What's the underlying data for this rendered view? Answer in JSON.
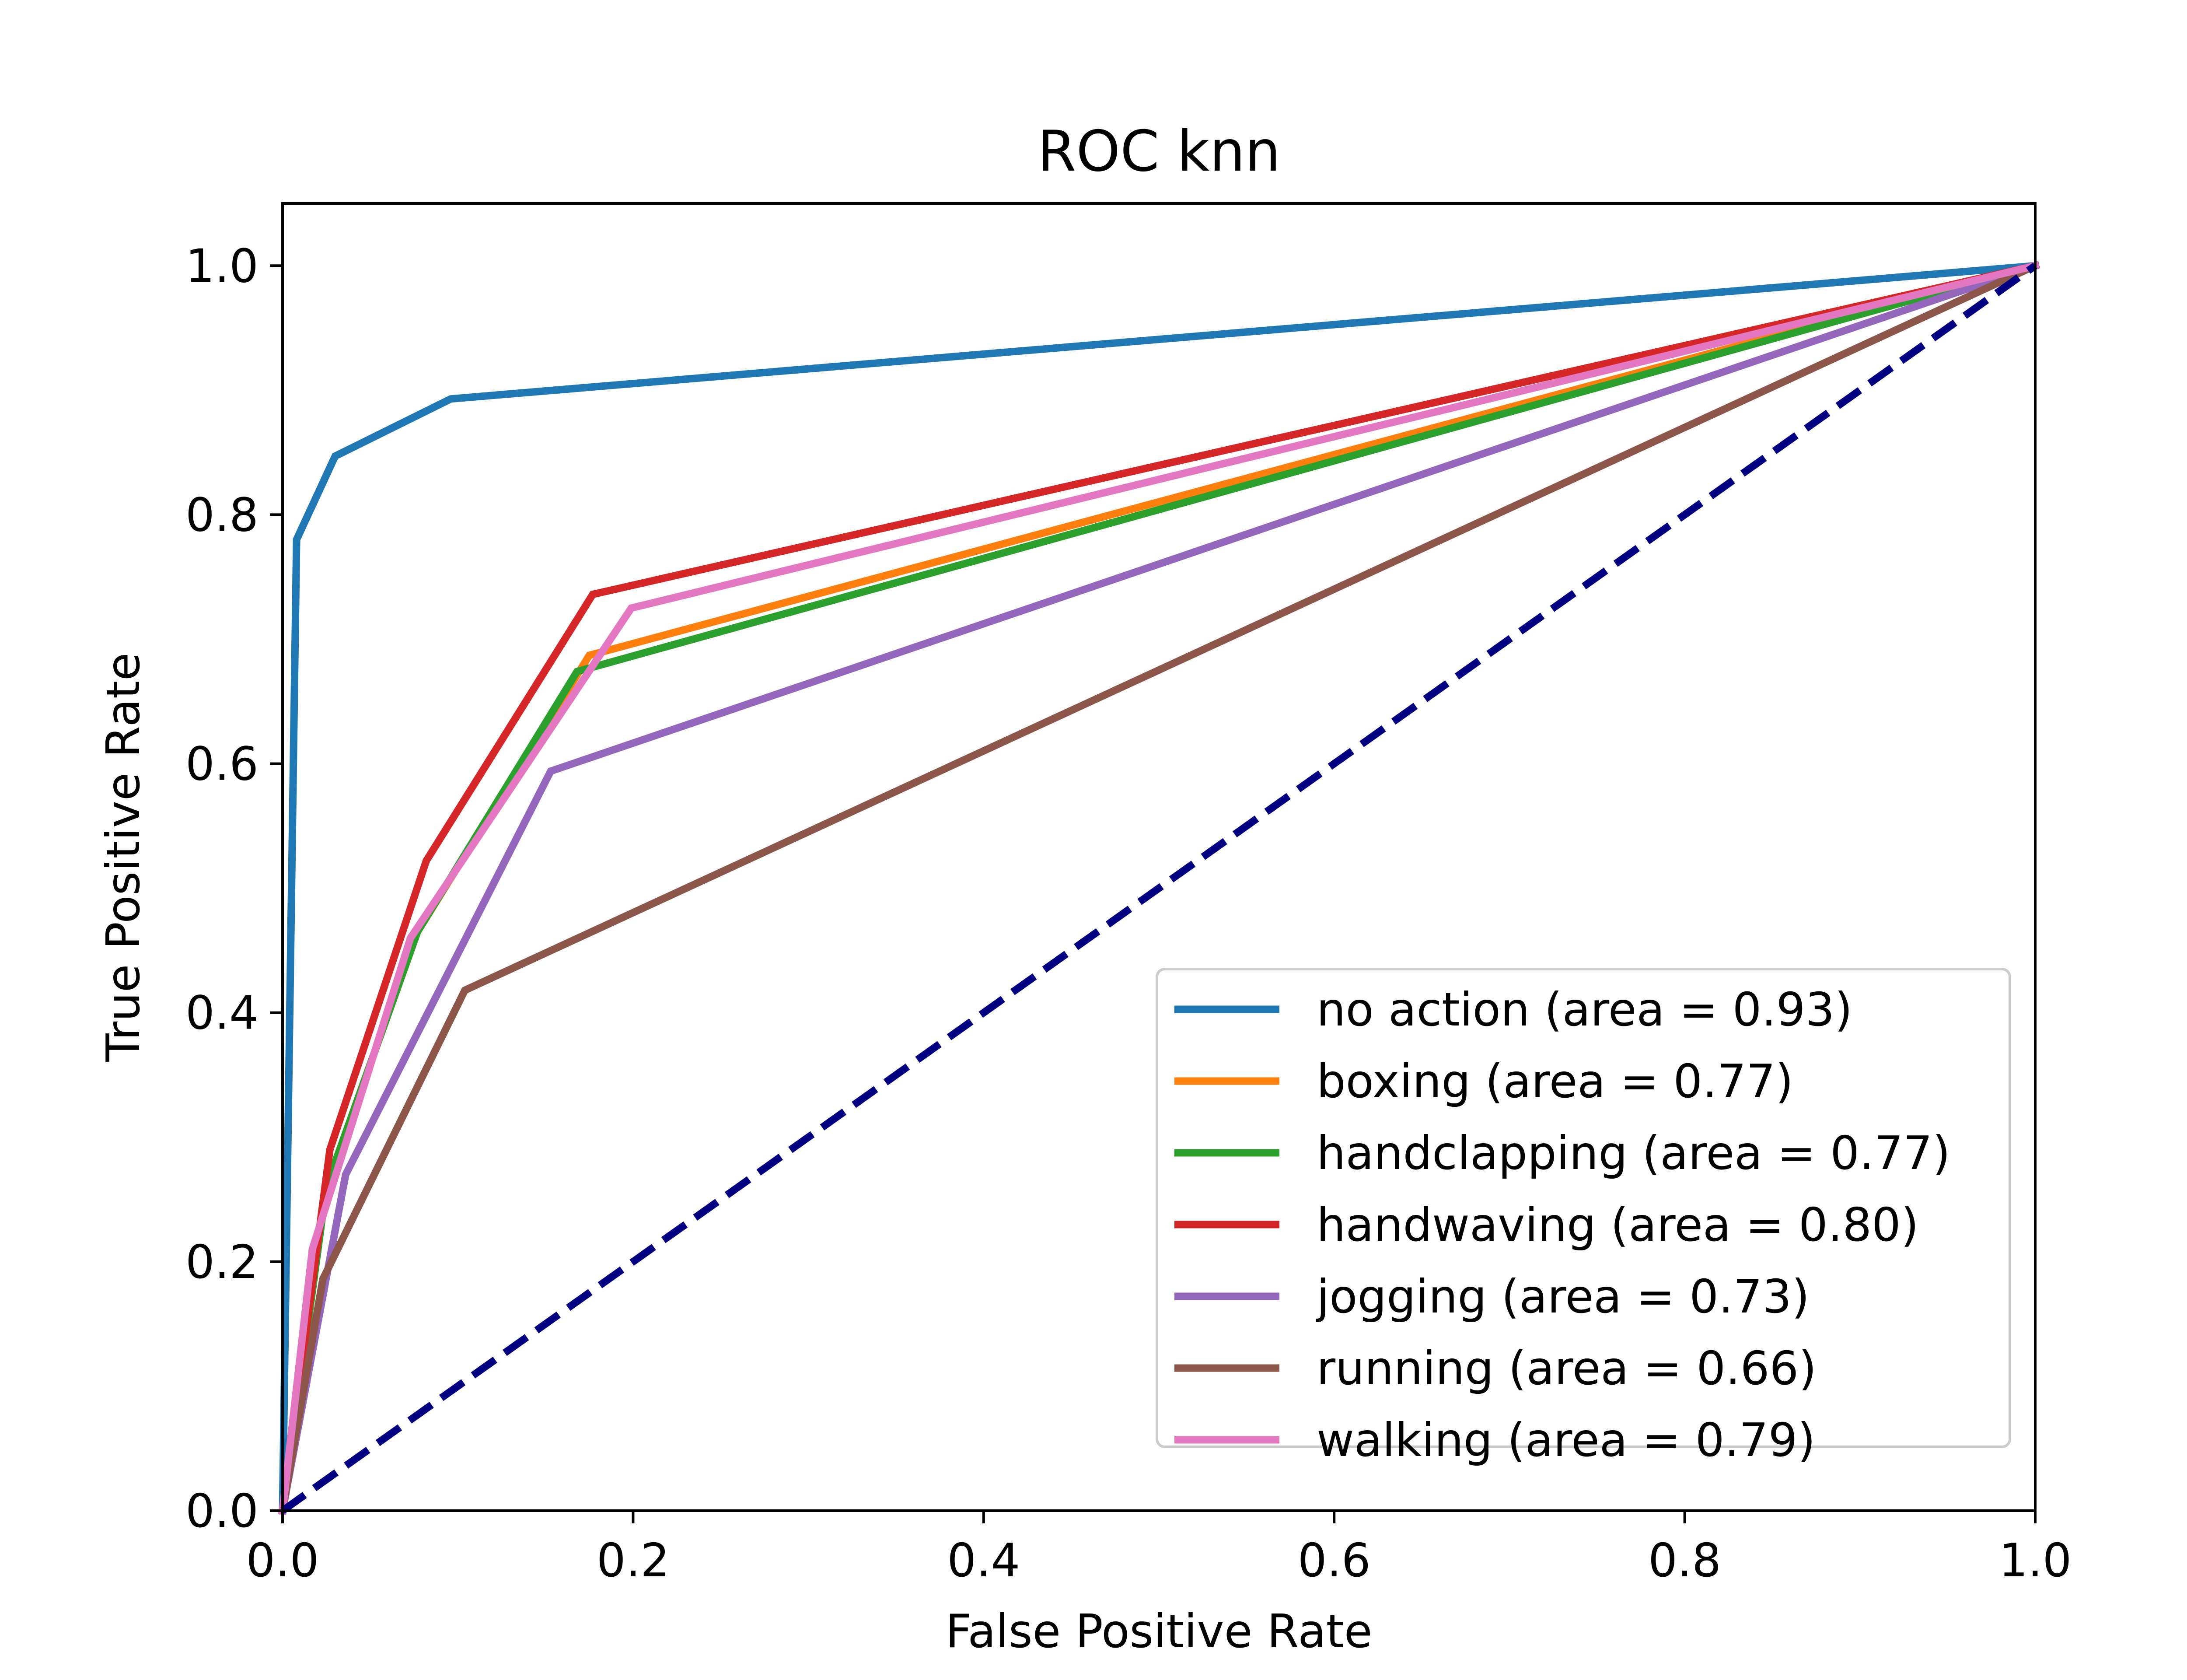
{
  "chart_data": {
    "type": "line",
    "title": "ROC knn",
    "xlabel": "False Positive Rate",
    "ylabel": "True Positive Rate",
    "xlim": [
      0.0,
      1.0
    ],
    "ylim": [
      0.0,
      1.05
    ],
    "xticks": [
      "0.0",
      "0.2",
      "0.4",
      "0.6",
      "0.8",
      "1.0"
    ],
    "yticks": [
      "0.0",
      "0.2",
      "0.4",
      "0.6",
      "0.8",
      "1.0"
    ],
    "grid": false,
    "legend_position": "lower-right",
    "series": [
      {
        "name": "no action (area = 0.93)",
        "color": "#1f77b4",
        "x": [
          0.0,
          0.008,
          0.03,
          0.096,
          1.0
        ],
        "y": [
          0.0,
          0.78,
          0.847,
          0.893,
          1.0
        ]
      },
      {
        "name": "boxing (area = 0.77)",
        "color": "#ff7f0e",
        "x": [
          0.0,
          0.025,
          0.077,
          0.175,
          1.0
        ],
        "y": [
          0.0,
          0.26,
          0.465,
          0.687,
          1.0
        ]
      },
      {
        "name": "handclapping (area = 0.77)",
        "color": "#2ca02c",
        "x": [
          0.0,
          0.025,
          0.077,
          0.168,
          1.0
        ],
        "y": [
          0.0,
          0.26,
          0.465,
          0.674,
          1.0
        ]
      },
      {
        "name": "handwaving (area = 0.80)",
        "color": "#d62728",
        "x": [
          0.0,
          0.027,
          0.082,
          0.177,
          1.0
        ],
        "y": [
          0.0,
          0.29,
          0.522,
          0.736,
          1.0
        ]
      },
      {
        "name": "jogging (area = 0.73)",
        "color": "#9467bd",
        "x": [
          0.0,
          0.036,
          0.153,
          1.0
        ],
        "y": [
          0.0,
          0.27,
          0.594,
          1.0
        ]
      },
      {
        "name": "running (area = 0.66)",
        "color": "#8c564b",
        "x": [
          0.0,
          0.023,
          0.104,
          1.0
        ],
        "y": [
          0.0,
          0.186,
          0.418,
          1.0
        ]
      },
      {
        "name": "walking (area = 0.79)",
        "color": "#e377c2",
        "x": [
          0.0,
          0.017,
          0.073,
          0.199,
          1.0
        ],
        "y": [
          0.0,
          0.21,
          0.46,
          0.725,
          1.0
        ]
      }
    ],
    "reference_line": {
      "x": [
        0.0,
        1.0
      ],
      "y": [
        0.0,
        1.0
      ],
      "color": "#000080",
      "style": "dashed"
    }
  }
}
